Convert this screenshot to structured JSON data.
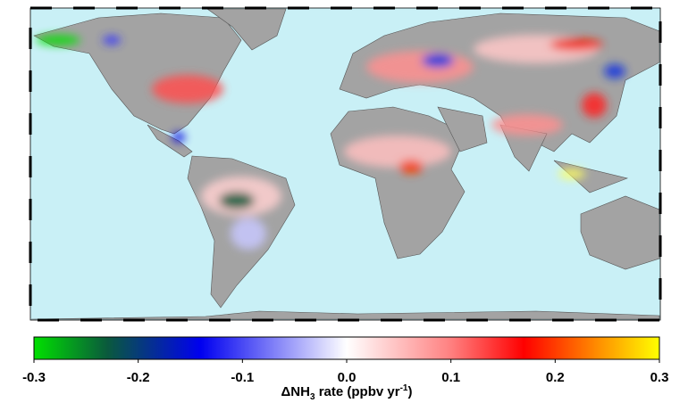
{
  "colorbar": {
    "lim": [
      -0.3,
      0.3
    ],
    "ticks": [
      -0.3,
      -0.2,
      -0.1,
      {
        "value": 0,
        "label": "0.0"
      },
      0.1,
      0.2,
      0.3
    ],
    "colormap": [
      {
        "value": -0.3,
        "color": "#00e000"
      },
      {
        "value": -0.23,
        "color": "#0a5a3c"
      },
      {
        "value": -0.14,
        "color": "#0000f0"
      },
      {
        "value": 0,
        "color": "#ffffff"
      },
      {
        "value": 0.1,
        "color": "#ff8080"
      },
      {
        "value": 0.17,
        "color": "#ff0000"
      },
      {
        "value": 0.24,
        "color": "#ff8c00"
      },
      {
        "value": 0.3,
        "color": "#ffff00"
      }
    ],
    "label": {
      "symbol": "ΔNH",
      "subscript": "3",
      "text": " rate (ppbv yr",
      "superscript": "-1",
      "end": ")"
    }
  }
}
